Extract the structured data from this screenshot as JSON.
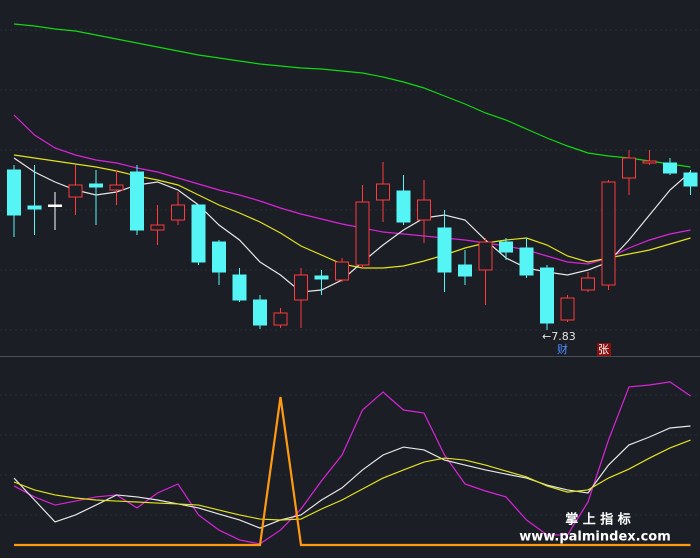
{
  "chart_data": [
    {
      "type": "candlestick",
      "up_color": "#ff3b3b",
      "down_color": "#55f5f5",
      "flat_color": "#ffffff",
      "open": [
        9.43,
        9.07,
        9.08,
        9.16,
        9.29,
        9.23,
        9.41,
        8.83,
        8.93,
        9.08,
        8.71,
        8.38,
        8.13,
        7.88,
        8.13,
        8.37,
        8.33,
        8.48,
        9.13,
        9.22,
        8.93,
        8.85,
        8.48,
        8.43,
        8.71,
        8.65,
        8.45,
        7.93,
        8.23,
        8.28,
        9.35,
        9.5,
        9.5,
        9.4
      ],
      "high": [
        9.48,
        9.48,
        9.21,
        9.48,
        9.43,
        9.43,
        9.48,
        9.08,
        9.21,
        9.08,
        8.73,
        8.45,
        8.18,
        8.05,
        8.45,
        8.43,
        8.55,
        9.28,
        9.51,
        9.38,
        9.33,
        9.03,
        8.63,
        8.75,
        8.75,
        8.75,
        8.48,
        8.18,
        8.41,
        9.33,
        9.63,
        9.63,
        9.55,
        9.43
      ],
      "low": [
        8.76,
        8.78,
        8.83,
        8.98,
        8.88,
        9.08,
        8.78,
        8.68,
        8.88,
        8.48,
        8.28,
        8.11,
        7.84,
        7.85,
        7.85,
        8.18,
        8.31,
        8.45,
        8.91,
        8.88,
        8.7,
        8.21,
        8.28,
        8.08,
        8.53,
        8.35,
        7.83,
        7.91,
        8.21,
        8.23,
        9.18,
        9.48,
        9.38,
        9.18
      ],
      "close": [
        8.98,
        9.04,
        9.08,
        9.28,
        9.26,
        9.28,
        8.83,
        8.88,
        9.08,
        8.51,
        8.41,
        8.13,
        7.88,
        8.0,
        8.38,
        8.34,
        8.51,
        9.11,
        9.29,
        8.91,
        9.13,
        8.41,
        8.37,
        8.71,
        8.61,
        8.38,
        7.9,
        8.15,
        8.35,
        9.31,
        9.55,
        9.52,
        9.4,
        9.27
      ],
      "series": [
        {
          "color": "#12d812",
          "values": [
            10.89,
            10.87,
            10.84,
            10.82,
            10.78,
            10.74,
            10.7,
            10.66,
            10.62,
            10.58,
            10.55,
            10.52,
            10.49,
            10.47,
            10.45,
            10.44,
            10.42,
            10.4,
            10.36,
            10.31,
            10.25,
            10.17,
            10.09,
            10.0,
            9.93,
            9.84,
            9.75,
            9.67,
            9.6,
            9.57,
            9.55,
            9.52,
            9.49,
            9.46
          ]
        },
        {
          "color": "#d825d8",
          "values": [
            9.98,
            9.78,
            9.65,
            9.58,
            9.53,
            9.5,
            9.45,
            9.41,
            9.35,
            9.29,
            9.23,
            9.18,
            9.12,
            9.05,
            8.99,
            8.94,
            8.89,
            8.85,
            8.81,
            8.79,
            8.77,
            8.75,
            8.73,
            8.7,
            8.67,
            8.63,
            8.57,
            8.51,
            8.49,
            8.55,
            8.65,
            8.73,
            8.79,
            8.83
          ]
        },
        {
          "color": "#e2e21c",
          "values": [
            9.58,
            9.55,
            9.52,
            9.49,
            9.46,
            9.42,
            9.37,
            9.33,
            9.28,
            9.18,
            9.08,
            9.0,
            8.91,
            8.8,
            8.67,
            8.58,
            8.49,
            8.45,
            8.45,
            8.47,
            8.52,
            8.58,
            8.65,
            8.7,
            8.73,
            8.75,
            8.68,
            8.57,
            8.51,
            8.55,
            8.59,
            8.63,
            8.69,
            8.75
          ]
        },
        {
          "color": "#e6e6e6",
          "values": [
            9.55,
            9.41,
            9.31,
            9.23,
            9.18,
            9.21,
            9.28,
            9.31,
            9.23,
            9.08,
            8.88,
            8.73,
            8.51,
            8.38,
            8.21,
            8.23,
            8.33,
            8.51,
            8.68,
            8.83,
            8.95,
            8.98,
            8.93,
            8.73,
            8.55,
            8.45,
            8.41,
            8.38,
            8.43,
            8.51,
            8.73,
            8.98,
            9.23,
            9.41
          ]
        }
      ],
      "ylim": [
        7.58,
        11.13
      ],
      "annotations": [
        "←7.83",
        "财",
        "张"
      ]
    },
    {
      "type": "line",
      "series": [
        {
          "color": "#d825d8",
          "values": [
            32.8,
            26.7,
            22.2,
            24.4,
            26.7,
            27.8,
            20.6,
            28.9,
            33.9,
            16.7,
            8.3,
            2.8,
            0.6,
            8.3,
            20,
            35.6,
            50,
            75,
            85,
            75,
            73.3,
            50,
            33.9,
            30,
            26.7,
            13.9,
            5.6,
            5.6,
            23.9,
            58.3,
            87.8,
            88.9,
            90.6,
            82.8
          ]
        },
        {
          "color": "#e6e6e6",
          "values": [
            37.2,
            25,
            12.8,
            16.7,
            22.2,
            27.8,
            26.7,
            25,
            22.8,
            20.6,
            17.2,
            13.9,
            9.4,
            13.9,
            16.7,
            25,
            31.7,
            41.7,
            50,
            54.4,
            52.8,
            47.2,
            44.4,
            41.7,
            39.4,
            37.2,
            33.3,
            30.6,
            28.9,
            44.4,
            55.6,
            60,
            65,
            66.1
          ]
        },
        {
          "color": "#e2e21c",
          "values": [
            35,
            30.6,
            27.8,
            26.1,
            25,
            24.4,
            23.9,
            23.3,
            22.8,
            22.2,
            19.4,
            16.7,
            14.4,
            13.9,
            14.4,
            20,
            25,
            31.1,
            37.2,
            41.7,
            46.1,
            48.3,
            47.2,
            44.4,
            41.1,
            37.8,
            32.8,
            29.4,
            30.6,
            37.2,
            42.2,
            48.3,
            53.9,
            58.3
          ]
        },
        {
          "color": "#ff9a10",
          "values": [
            0,
            0,
            0,
            0,
            0,
            0,
            0,
            0,
            0,
            0,
            0,
            0,
            0,
            82.2,
            0,
            0,
            0,
            0,
            0,
            0,
            0,
            0,
            0,
            0,
            0,
            0,
            0,
            0,
            0,
            0,
            0,
            0,
            0,
            0
          ]
        }
      ],
      "ylim": [
        0,
        100
      ],
      "watermark": [
        "掌 上 指 标",
        "www.palmindex.com"
      ]
    }
  ]
}
